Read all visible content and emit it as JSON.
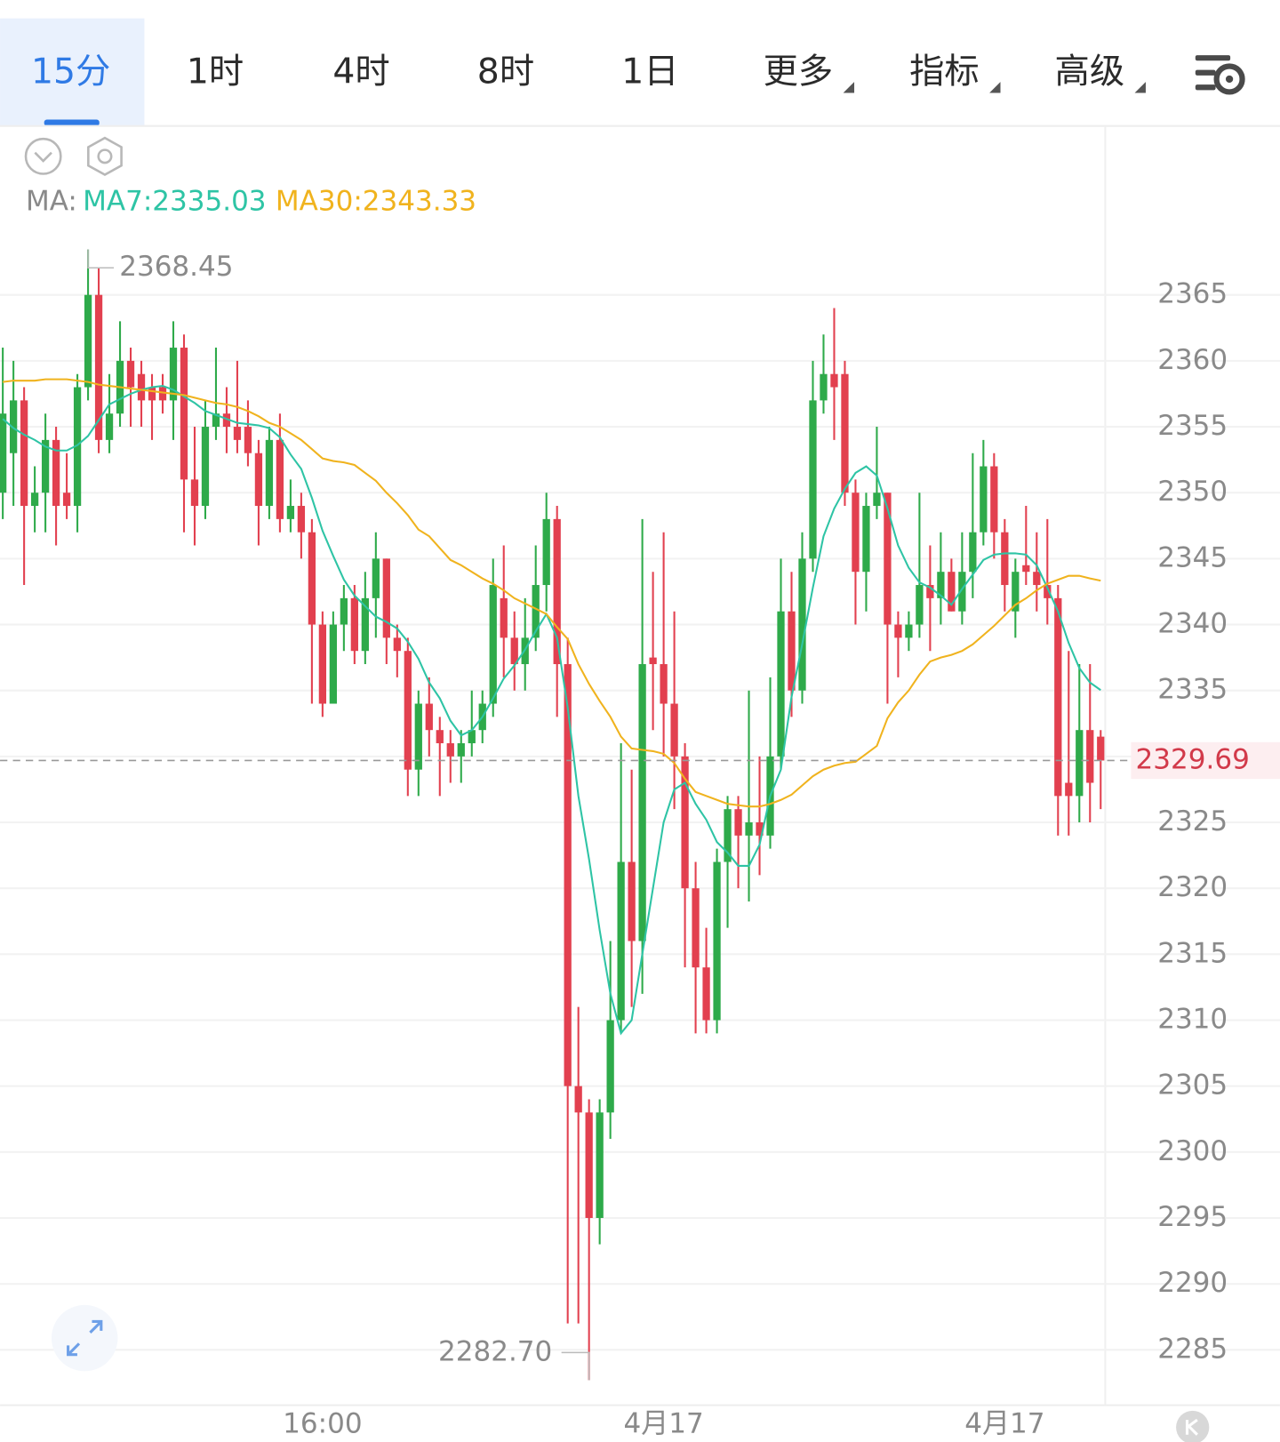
{
  "tabs": [
    "15分",
    "1时",
    "4时",
    "8时",
    "1日",
    "更多",
    "指标",
    "高级"
  ],
  "chart_data": {
    "type": "candlestick",
    "legend_title": "MA:",
    "categories": [
      null,
      null,
      null,
      null,
      null,
      null,
      null,
      null,
      null,
      null,
      null,
      null,
      null,
      null,
      null,
      null,
      null,
      null,
      null,
      null,
      null,
      null,
      null,
      null,
      null,
      null,
      null,
      null,
      null,
      null,
      "16:00",
      null,
      null,
      null,
      null,
      null,
      null,
      null,
      null,
      null,
      null,
      null,
      null,
      null,
      null,
      null,
      null,
      null,
      null,
      null,
      null,
      null,
      null,
      null,
      null,
      null,
      null,
      null,
      null,
      null,
      null,
      null,
      "4月17",
      null,
      null,
      null,
      null,
      null,
      null,
      null,
      null,
      null,
      null,
      null,
      null,
      null,
      null,
      null,
      null,
      null,
      null,
      null,
      null,
      null,
      null,
      null,
      null,
      null,
      null,
      null,
      null,
      null,
      null,
      null,
      "4月17",
      null,
      null,
      null,
      null,
      null,
      null,
      null,
      null,
      null
    ],
    "open": [
      2350,
      2353,
      2357,
      2349,
      2350,
      2354,
      2350,
      2349,
      2358,
      2365,
      2354,
      2356,
      2360,
      2359,
      2358,
      2358,
      2357,
      2361,
      2351,
      2349,
      2355,
      2356,
      2355,
      2355,
      2353,
      2349,
      2354,
      2348,
      2349,
      2347,
      2340,
      2334,
      2340,
      2342,
      2338,
      2342,
      2345,
      2339,
      2338,
      2329,
      2334,
      2332,
      2331,
      2330,
      2331,
      2332,
      2334,
      2342,
      2339,
      2337,
      2339,
      2343,
      2348,
      2337,
      2305,
      2303,
      2295,
      2303,
      2310,
      2322,
      2316,
      2337.5,
      2337,
      2334,
      2330,
      2320,
      2314,
      2310,
      2322,
      2326,
      2324,
      2325,
      2324,
      2330,
      2341,
      2335,
      2345,
      2357,
      2359,
      2359,
      2350,
      2344,
      2349,
      2350,
      2340,
      2339,
      2340,
      2343,
      2342,
      2344,
      2341,
      2344,
      2347,
      2352,
      2347,
      2341,
      2344.5,
      2344,
      2343,
      2342,
      2328,
      2327,
      2332,
      2331.5
    ],
    "high": [
      2361,
      2360,
      2358,
      2352,
      2356,
      2355,
      2353,
      2359,
      2368.45,
      2367,
      2359,
      2363,
      2361,
      2360,
      2359,
      2359,
      2363,
      2362,
      2355,
      2357,
      2361,
      2358,
      2360,
      2357,
      2354,
      2355,
      2356,
      2351,
      2350,
      2348,
      2341,
      2341,
      2343,
      2343,
      2344,
      2347,
      2345,
      2340,
      2339,
      2335,
      2336,
      2333,
      2332,
      2332,
      2335,
      2335,
      2345,
      2346,
      2341,
      2342,
      2346,
      2350,
      2349,
      2339,
      2311,
      2304,
      2304,
      2316,
      2331,
      2329,
      2348,
      2344,
      2347,
      2341,
      2331,
      2322,
      2317,
      2323,
      2327,
      2327,
      2335,
      2330,
      2336,
      2345,
      2344,
      2347,
      2360,
      2362,
      2364,
      2360,
      2351,
      2350,
      2355,
      2350,
      2341,
      2341,
      2350,
      2346,
      2347,
      2345,
      2347,
      2353,
      2354,
      2353,
      2348,
      2345,
      2349,
      2347,
      2348,
      2343,
      2338,
      2337,
      2337,
      2332
    ],
    "low": [
      2348,
      2349,
      2343,
      2347,
      2347,
      2346,
      2348,
      2347,
      2357,
      2353,
      2353,
      2355,
      2355,
      2355,
      2354,
      2356,
      2354,
      2347,
      2346,
      2348,
      2354,
      2353,
      2353,
      2352,
      2346,
      2348,
      2347,
      2347,
      2345,
      2334,
      2333,
      2334,
      2338,
      2337,
      2337,
      2339,
      2337,
      2336,
      2327,
      2327,
      2330,
      2327,
      2328,
      2328,
      2330,
      2331,
      2333,
      2336,
      2335,
      2335,
      2338,
      2341,
      2333,
      2287,
      2287,
      2282.7,
      2293,
      2301,
      2309,
      2311,
      2312,
      2332,
      2330,
      2326,
      2314,
      2309,
      2309,
      2309,
      2317,
      2320,
      2319,
      2321,
      2323,
      2329,
      2333,
      2334,
      2344,
      2356,
      2354,
      2349,
      2340,
      2341,
      2348,
      2334,
      2336,
      2338,
      2339,
      2338,
      2340,
      2341,
      2340,
      2342,
      2346,
      2345,
      2341,
      2339,
      2343,
      2341,
      2340,
      2324,
      2324,
      2325,
      2325,
      2326
    ],
    "close": [
      2356,
      2357,
      2349,
      2350,
      2354,
      2349,
      2349,
      2358,
      2365,
      2354,
      2356,
      2360,
      2358,
      2357,
      2357,
      2357,
      2361,
      2351,
      2349,
      2355,
      2356,
      2355,
      2354,
      2353,
      2349,
      2354,
      2348,
      2349,
      2347,
      2340,
      2334,
      2340,
      2342,
      2338,
      2342,
      2345,
      2339,
      2338,
      2329,
      2334,
      2332,
      2331,
      2330,
      2331,
      2332,
      2334,
      2343,
      2339,
      2337,
      2339,
      2343,
      2348,
      2337,
      2305,
      2303,
      2295,
      2303,
      2310,
      2322,
      2316,
      2337,
      2337,
      2334,
      2330,
      2320,
      2314,
      2310,
      2322,
      2326,
      2324,
      2325,
      2324,
      2330,
      2341,
      2335,
      2345,
      2357,
      2359,
      2358,
      2350,
      2344,
      2349,
      2350,
      2340,
      2339,
      2340,
      2343,
      2342,
      2344,
      2341,
      2344,
      2347,
      2352,
      2347,
      2343,
      2344,
      2344,
      2343,
      2342,
      2327,
      2327,
      2332,
      2328,
      2329.69
    ],
    "up_color": "#2eaa4a",
    "down_color": "#e2404f",
    "series": [
      {
        "name": "MA7",
        "legend_label": "MA7:2335.03",
        "color": "#2ec4a5",
        "values": [
          2355.6,
          2354.9,
          2354.4,
          2354.0,
          2353.5,
          2353.2,
          2353.2,
          2353.6,
          2354.3,
          2355.5,
          2356.7,
          2357.1,
          2357.5,
          2357.8,
          2358.0,
          2358.1,
          2357.8,
          2357.3,
          2356.8,
          2356.2,
          2355.9,
          2355.6,
          2355.3,
          2355.2,
          2355.1,
          2354.9,
          2354.2,
          2352.9,
          2351.8,
          2349.6,
          2347.1,
          2345.2,
          2343.4,
          2342.2,
          2341.4,
          2340.6,
          2340.2,
          2339.7,
          2338.7,
          2337.4,
          2335.6,
          2334.4,
          2332.7,
          2331.6,
          2332.0,
          2333.0,
          2334.4,
          2335.9,
          2336.9,
          2338.1,
          2339.5,
          2340.8,
          2339.0,
          2333.7,
          2327.0,
          2322.2,
          2316.8,
          2312.0,
          2309.0,
          2310.0,
          2315.0,
          2320.0,
          2325.0,
          2327.5,
          2328.0,
          2326.4,
          2325.2,
          2323.5,
          2322.7,
          2321.7,
          2321.7,
          2323.3,
          2327.0,
          2329.0,
          2334.5,
          2338.5,
          2342.8,
          2346.7,
          2348.8,
          2350.3,
          2351.5,
          2352.0,
          2351.3,
          2348.8,
          2346.0,
          2344.3,
          2343.2,
          2342.8,
          2342.2,
          2341.5,
          2342.7,
          2343.8,
          2344.9,
          2345.3,
          2345.4,
          2345.4,
          2345.3,
          2344.5,
          2342.8,
          2341.0,
          2338.6,
          2336.7,
          2335.6,
          2335.03
        ]
      },
      {
        "name": "MA30",
        "legend_label": "MA30:2343.33",
        "color": "#f0b31e",
        "values": [
          2358.4,
          2358.5,
          2358.5,
          2358.5,
          2358.6,
          2358.6,
          2358.6,
          2358.5,
          2358.4,
          2358.2,
          2358.1,
          2358.0,
          2357.9,
          2357.8,
          2357.7,
          2357.6,
          2357.5,
          2357.4,
          2357.2,
          2357.0,
          2356.8,
          2356.7,
          2356.5,
          2356.2,
          2355.8,
          2355.3,
          2355.0,
          2354.5,
          2354.0,
          2353.3,
          2352.6,
          2352.4,
          2352.3,
          2352.1,
          2351.5,
          2350.9,
          2350.0,
          2349.2,
          2348.3,
          2347.2,
          2346.7,
          2345.8,
          2344.9,
          2344.5,
          2344.0,
          2343.5,
          2343.1,
          2342.6,
          2342.0,
          2341.6,
          2341.2,
          2340.8,
          2339.8,
          2338.9,
          2337.0,
          2335.5,
          2334.2,
          2333.0,
          2331.5,
          2330.6,
          2330.5,
          2330.4,
          2330.2,
          2329.5,
          2328.3,
          2327.3,
          2327.0,
          2326.7,
          2326.4,
          2326.3,
          2326.2,
          2326.2,
          2326.4,
          2326.7,
          2327.1,
          2327.8,
          2328.5,
          2329.0,
          2329.3,
          2329.5,
          2329.6,
          2330.2,
          2330.8,
          2332.9,
          2334.1,
          2335.0,
          2336.2,
          2337.2,
          2337.5,
          2337.7,
          2338.0,
          2338.5,
          2339.2,
          2339.9,
          2340.7,
          2341.5,
          2342.0,
          2342.6,
          2343.1,
          2343.4,
          2343.7,
          2343.7,
          2343.5,
          2343.33
        ]
      }
    ],
    "max_marker": 2368.45,
    "min_marker": {
      "value": 2282.7,
      "label": "2282.70"
    },
    "last_price": 2329.69,
    "ylim": [
      2280.8,
      2377.6
    ],
    "yticks": [
      2285,
      2290,
      2295,
      2300,
      2305,
      2310,
      2315,
      2320,
      2325,
      2330,
      2335,
      2340,
      2345,
      2350,
      2355,
      2360,
      2365
    ],
    "grid": true
  }
}
